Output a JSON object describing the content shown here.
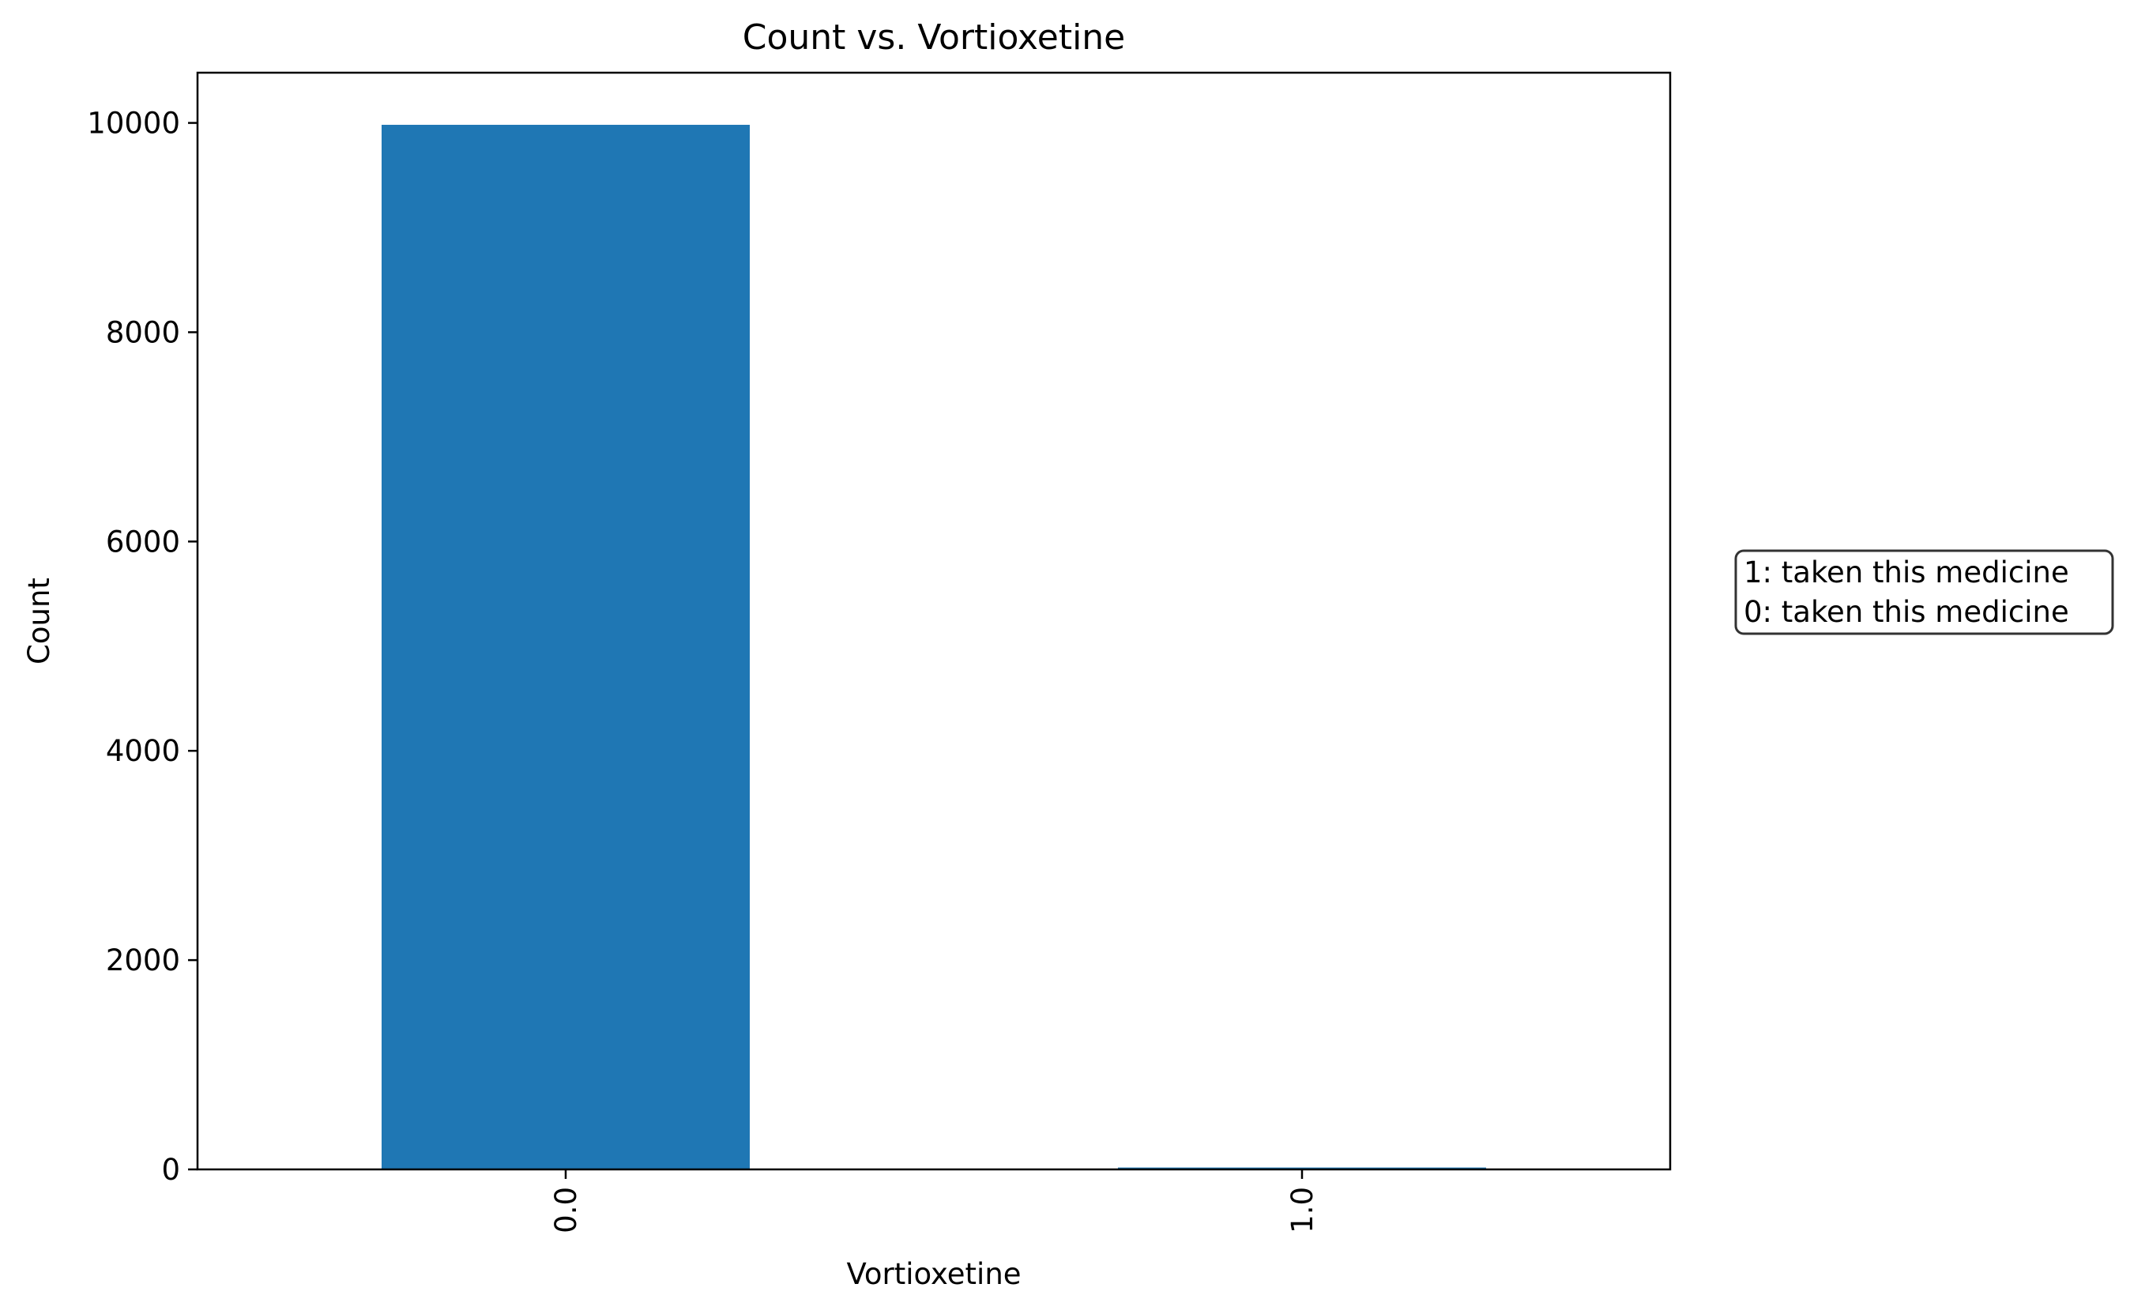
{
  "chart_data": {
    "type": "bar",
    "title": "Count vs. Vortioxetine",
    "xlabel": "Vortioxetine",
    "ylabel": "Count",
    "categories": [
      "0.0",
      "1.0"
    ],
    "values": [
      9982,
      18
    ],
    "ylim": [
      0,
      10480
    ],
    "yticks": [
      0,
      2000,
      4000,
      6000,
      8000,
      10000
    ],
    "ytick_labels": [
      "0",
      "2000",
      "4000",
      "6000",
      "8000",
      "10000"
    ],
    "bar_color": "#1f77b4",
    "grid": false,
    "legend": "none",
    "annotation": {
      "lines": [
        "1: taken this medicine",
        "0: taken this medicine"
      ],
      "placement": "right"
    }
  }
}
